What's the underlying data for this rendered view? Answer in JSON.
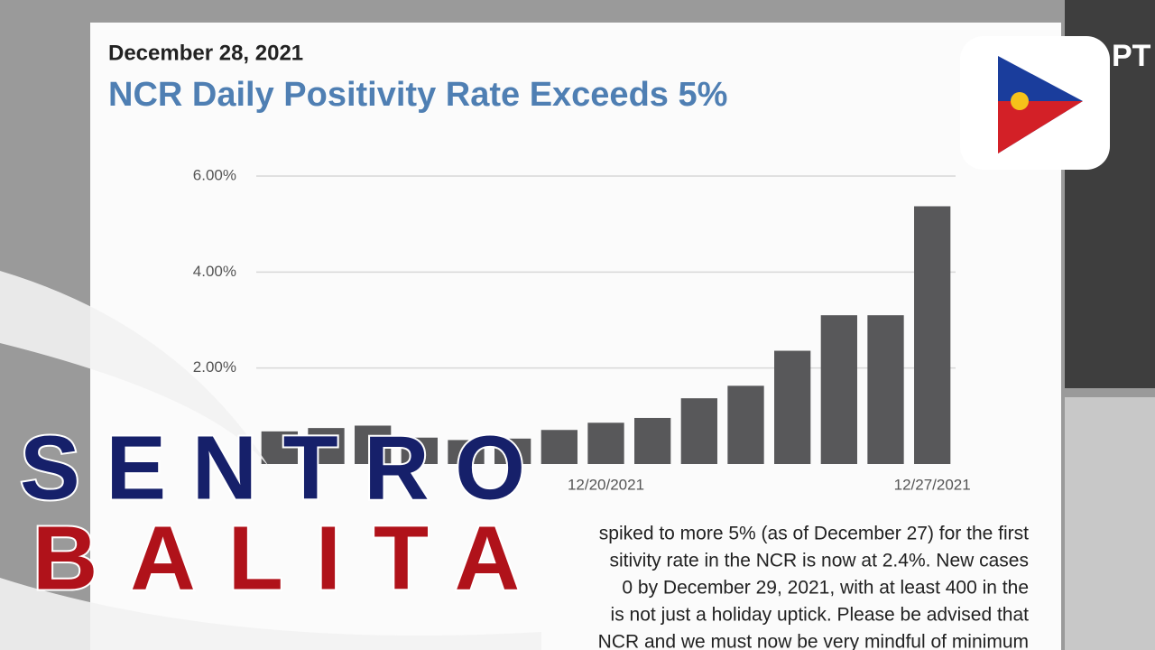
{
  "header": {
    "date": "December 28, 2021"
  },
  "chart_data": {
    "type": "bar",
    "title": "NCR Daily Positivity Rate Exceeds 5%",
    "categories": [
      null,
      null,
      null,
      null,
      null,
      null,
      null,
      "12/20/2021",
      null,
      null,
      null,
      null,
      null,
      null,
      "12/27/2021"
    ],
    "values": [
      0.68,
      0.75,
      0.8,
      0.55,
      0.5,
      0.53,
      0.71,
      0.86,
      0.96,
      1.37,
      1.63,
      2.36,
      3.1,
      3.1,
      5.37
    ],
    "color": "#58585a",
    "ylim": [
      0,
      6
    ],
    "yticks": [
      {
        "value": 2,
        "label": "2.00%"
      },
      {
        "value": 4,
        "label": "4.00%"
      },
      {
        "value": 6,
        "label": "6.00%"
      }
    ],
    "grid": true
  },
  "body_text": [
    "spiked to more 5% (as of December 27) for the first",
    "sitivity rate in the NCR is now at 2.4%. New cases",
    "0 by December 29, 2021, with at least 400 in the",
    "is not just a holiday uptick. Please be advised that",
    "NCR and we must now be very mindful of minimum"
  ],
  "logo_text": "PT",
  "overlay": {
    "line1": "SENTRO",
    "line2": "BALITA"
  }
}
